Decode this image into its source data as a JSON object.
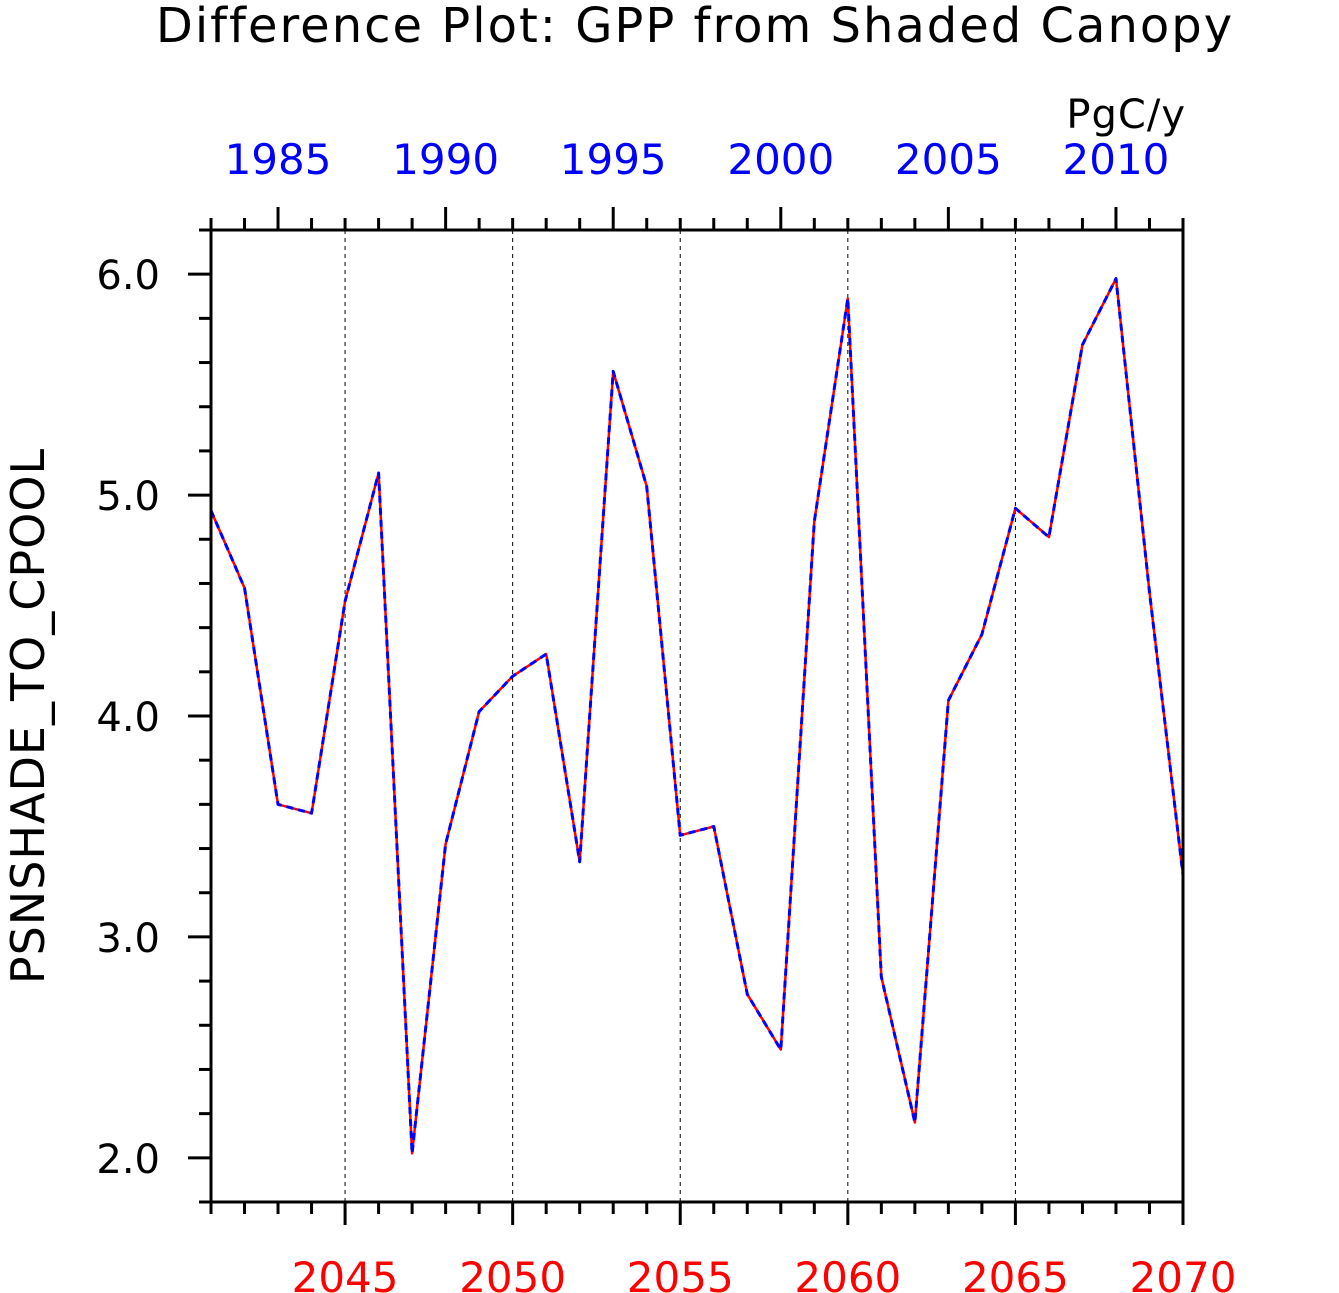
{
  "chart_data": {
    "type": "line",
    "title": "Difference Plot: GPP from Shaded Canopy",
    "units": "PgC/y",
    "ylabel": "PSNSHADE_TO_CPOOL",
    "ylim": [
      1.8,
      6.2
    ],
    "y_ticks": [
      "2.0",
      "3.0",
      "4.0",
      "5.0",
      "6.0"
    ],
    "y_tick_values": [
      2.0,
      3.0,
      4.0,
      5.0,
      6.0
    ],
    "y_minor_step": 0.2,
    "bottom_axis": {
      "color": "#ff0000",
      "range": [
        2041,
        2070
      ],
      "tick_labels": [
        "2045",
        "2050",
        "2055",
        "2060",
        "2065",
        "2070"
      ],
      "tick_values": [
        2045,
        2050,
        2055,
        2060,
        2065,
        2070
      ]
    },
    "top_axis": {
      "color": "#0000ff",
      "range": [
        1983,
        2012
      ],
      "tick_labels": [
        "1985",
        "1990",
        "1995",
        "2000",
        "2005",
        "2010"
      ],
      "tick_values": [
        1985,
        1990,
        1995,
        2000,
        2005,
        2010
      ]
    },
    "grid": "vertical dashed at major bottom ticks",
    "x": [
      2041,
      2042,
      2043,
      2044,
      2045,
      2046,
      2047,
      2048,
      2049,
      2050,
      2051,
      2052,
      2053,
      2054,
      2055,
      2056,
      2057,
      2058,
      2059,
      2060,
      2061,
      2062,
      2063,
      2064,
      2065,
      2066,
      2067,
      2068,
      2069,
      2070
    ],
    "series": [
      {
        "color": "#ff0000",
        "style": "solid",
        "values": [
          4.93,
          4.58,
          3.6,
          3.56,
          4.52,
          5.1,
          2.02,
          3.42,
          4.02,
          4.18,
          4.28,
          3.34,
          5.56,
          5.04,
          3.46,
          3.5,
          2.74,
          2.49,
          4.88,
          5.89,
          2.82,
          2.16,
          4.07,
          4.37,
          4.94,
          4.81,
          5.68,
          5.98,
          4.56,
          3.28
        ]
      },
      {
        "color": "#0000ff",
        "style": "dashed",
        "values": [
          4.93,
          4.58,
          3.6,
          3.56,
          4.52,
          5.1,
          2.02,
          3.42,
          4.02,
          4.18,
          4.28,
          3.34,
          5.56,
          5.04,
          3.46,
          3.5,
          2.74,
          2.49,
          4.88,
          5.89,
          2.82,
          2.16,
          4.07,
          4.37,
          4.94,
          4.81,
          5.68,
          5.98,
          4.56,
          3.28
        ]
      }
    ]
  }
}
